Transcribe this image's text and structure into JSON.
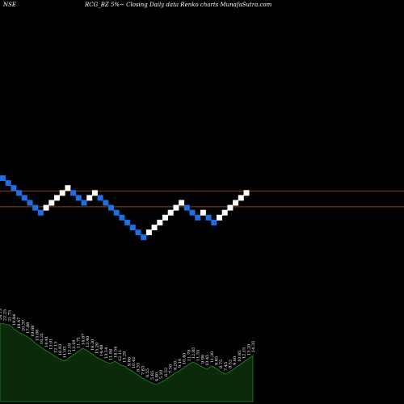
{
  "header": {
    "exchange": "NSE",
    "title": "RCG_BZ 5%~  Closing Daily data  Renko  charts MunafaSutra.com"
  },
  "colors": {
    "background": "#000000",
    "up_brick": "#ffffff",
    "down_brick": "#1e6fe6",
    "reference_line": "#8b4513",
    "volume_fill": "#0a2a0a",
    "volume_stroke": "#1e8c1e",
    "text": "#ffffff"
  },
  "chart_data": {
    "type": "renko",
    "brick_size_pct": 5,
    "bricks": [
      {
        "dir": "down",
        "level": 0
      },
      {
        "dir": "down",
        "level": -1
      },
      {
        "dir": "down",
        "level": -2
      },
      {
        "dir": "down",
        "level": -3
      },
      {
        "dir": "down",
        "level": -4
      },
      {
        "dir": "down",
        "level": -5
      },
      {
        "dir": "down",
        "level": -6
      },
      {
        "dir": "down",
        "level": -7
      },
      {
        "dir": "up",
        "level": -6
      },
      {
        "dir": "up",
        "level": -5
      },
      {
        "dir": "up",
        "level": -4
      },
      {
        "dir": "up",
        "level": -3
      },
      {
        "dir": "up",
        "level": -2
      },
      {
        "dir": "down",
        "level": -3
      },
      {
        "dir": "down",
        "level": -4
      },
      {
        "dir": "down",
        "level": -5
      },
      {
        "dir": "up",
        "level": -4
      },
      {
        "dir": "up",
        "level": -3
      },
      {
        "dir": "down",
        "level": -4
      },
      {
        "dir": "down",
        "level": -5
      },
      {
        "dir": "down",
        "level": -6
      },
      {
        "dir": "down",
        "level": -7
      },
      {
        "dir": "down",
        "level": -8
      },
      {
        "dir": "down",
        "level": -9
      },
      {
        "dir": "down",
        "level": -10
      },
      {
        "dir": "down",
        "level": -11
      },
      {
        "dir": "down",
        "level": -12
      },
      {
        "dir": "up",
        "level": -11
      },
      {
        "dir": "up",
        "level": -10
      },
      {
        "dir": "up",
        "level": -9
      },
      {
        "dir": "up",
        "level": -8
      },
      {
        "dir": "up",
        "level": -7
      },
      {
        "dir": "up",
        "level": -6
      },
      {
        "dir": "up",
        "level": -5
      },
      {
        "dir": "down",
        "level": -6
      },
      {
        "dir": "down",
        "level": -7
      },
      {
        "dir": "down",
        "level": -8
      },
      {
        "dir": "up",
        "level": -7
      },
      {
        "dir": "down",
        "level": -8
      },
      {
        "dir": "down",
        "level": -9
      },
      {
        "dir": "up",
        "level": -8
      },
      {
        "dir": "up",
        "level": -7
      },
      {
        "dir": "up",
        "level": -6
      },
      {
        "dir": "up",
        "level": -5
      },
      {
        "dir": "up",
        "level": -4
      },
      {
        "dir": "up",
        "level": -3
      }
    ],
    "reference_lines": [
      {
        "level": -3.1
      },
      {
        "level": -6.3
      }
    ],
    "volume_labels": [
      "24.73",
      "22.25",
      "21.75",
      "19.84",
      "18.47",
      "20.37",
      "17.88",
      "19.08",
      "15.86",
      "16.21",
      "14.41",
      "13.01",
      "12.13",
      "10.93",
      "11.03",
      "12.19",
      "13.18",
      "11.71",
      "14.87",
      "13.40",
      "16.30",
      "15.20",
      "14.48",
      "13.14",
      "11.84",
      "14.54",
      "12.11",
      "13.29",
      "9.86",
      "10.42",
      "8.35",
      "7.83",
      "6.55",
      "5.85",
      "4.80",
      "5.20",
      "6.52",
      "7.30",
      "8.20",
      "9.10",
      "10.40",
      "11.70",
      "12.85",
      "11.55",
      "9.90",
      "10.45",
      "11.30",
      "9.85",
      "8.75",
      "7.45",
      "8.52",
      "9.60",
      "10.85",
      "12.15",
      "13.20",
      "14.35"
    ],
    "volume_values": [
      97,
      96,
      95,
      90,
      86,
      83,
      80,
      76,
      71,
      67,
      63,
      60,
      56,
      53,
      50,
      54,
      58,
      62,
      66,
      63,
      59,
      55,
      52,
      49,
      47,
      50,
      46,
      44,
      40,
      37,
      33,
      29,
      26,
      23,
      21,
      24,
      27,
      31,
      35,
      38,
      42,
      46,
      49,
      46,
      43,
      40,
      44,
      41,
      37,
      34,
      37,
      41,
      45,
      49,
      53,
      57
    ]
  }
}
